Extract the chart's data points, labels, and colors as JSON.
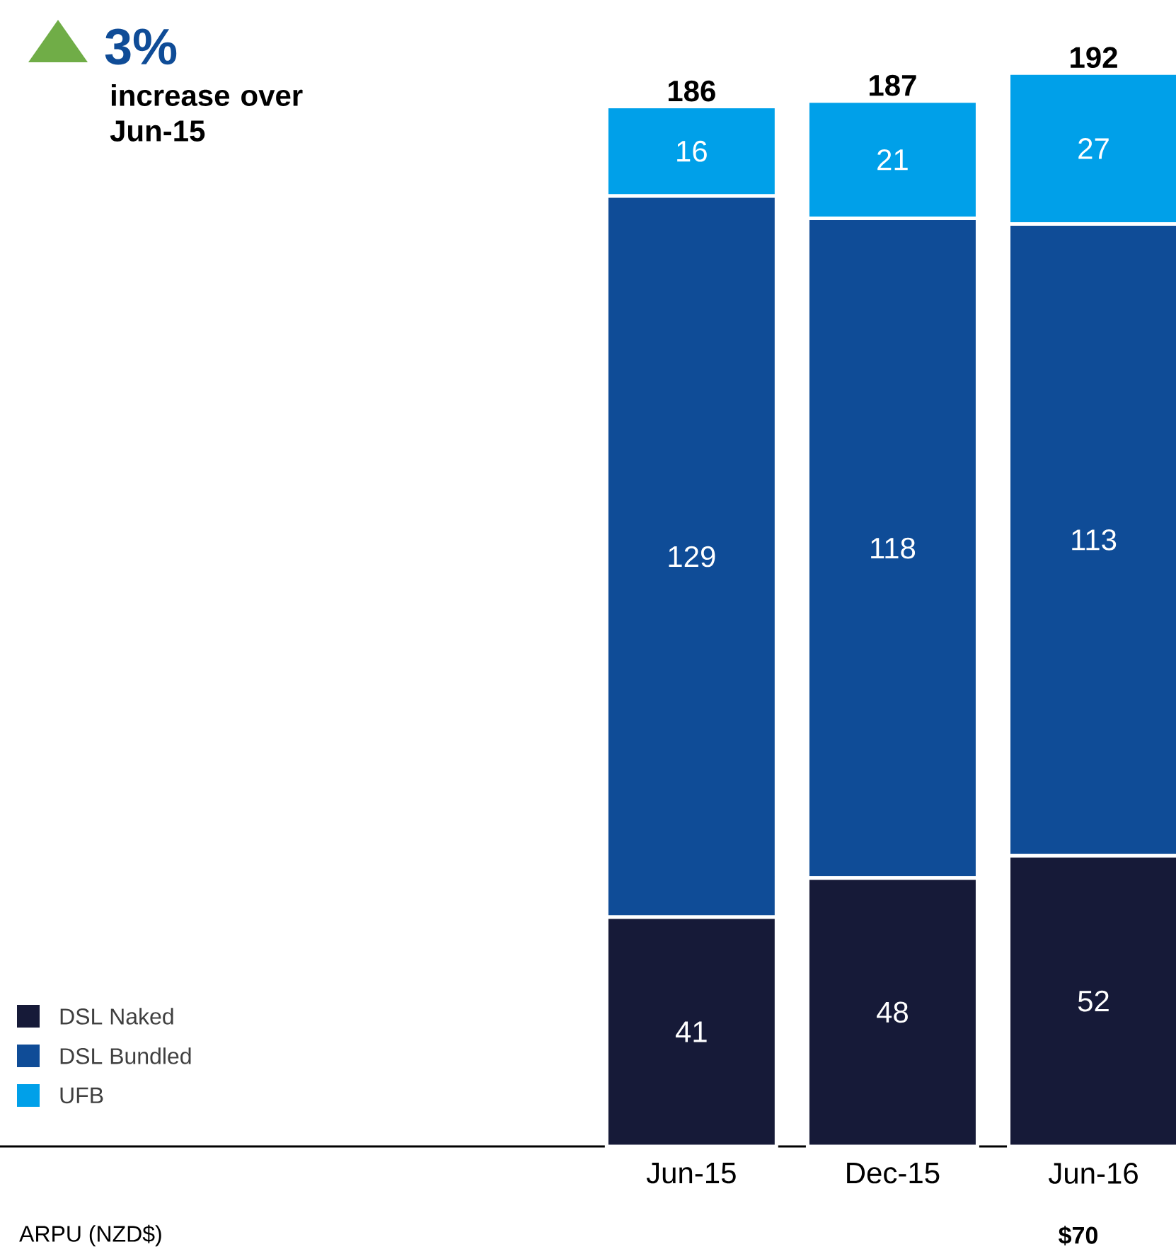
{
  "chart_data": {
    "type": "bar",
    "stacked": true,
    "categories": [
      "Jun-15",
      "Dec-15",
      "Jun-16"
    ],
    "series": [
      {
        "name": "DSL Naked",
        "color": "#161a38",
        "values": [
          41,
          48,
          52
        ]
      },
      {
        "name": "DSL Bundled",
        "color": "#0f4c97",
        "values": [
          129,
          118,
          113
        ]
      },
      {
        "name": "UFB",
        "color": "#00a0e9",
        "values": [
          16,
          21,
          27
        ]
      }
    ],
    "data_labels": true,
    "totals": [
      "186",
      "187",
      "192"
    ],
    "legend": "bottom left",
    "grid": false,
    "tick_labels": "x",
    "annotations": [
      "3%",
      "increase over Jun-15",
      "ARPU (NZD$)",
      "$70"
    ]
  }
}
